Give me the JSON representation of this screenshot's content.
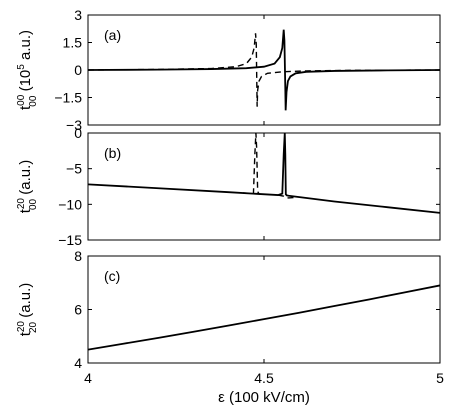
{
  "chart_data": {
    "type": "line",
    "shared_x": {
      "label": "ε (100 kV/cm)",
      "lim": [
        4,
        5
      ],
      "ticks": [
        "4",
        "4.5",
        "5"
      ]
    },
    "panels": [
      {
        "tag": "(a)",
        "ylabel": {
          "base": "t",
          "sup": "00",
          "sub": "00",
          "rest": " (10",
          "unitsup": "5",
          "unitrest": " a.u.)"
        },
        "ylim": [
          -3,
          3
        ],
        "yticks": [
          "3",
          "1.5",
          "0",
          "−1.5",
          "−3"
        ],
        "yticks_values": [
          3,
          1.5,
          0,
          -1.5,
          -3
        ],
        "series": [
          {
            "style": "solid",
            "x": [
              4.0,
              4.2,
              4.35,
              4.45,
              4.5,
              4.53,
              4.545,
              4.552,
              4.556,
              4.558,
              4.5605,
              4.5615,
              4.564,
              4.568,
              4.575,
              4.59,
              4.62,
              4.7,
              4.85,
              5.0
            ],
            "y": [
              0.0,
              0.02,
              0.05,
              0.1,
              0.18,
              0.35,
              0.7,
              1.2,
              2.2,
              1.6,
              -1.0,
              -2.2,
              -1.2,
              -0.6,
              -0.35,
              -0.18,
              -0.1,
              -0.05,
              -0.02,
              0.0
            ]
          },
          {
            "style": "dashed",
            "x": [
              4.0,
              4.2,
              4.35,
              4.42,
              4.45,
              4.465,
              4.472,
              4.476,
              4.478,
              4.4795,
              4.4805,
              4.482,
              4.486,
              4.493,
              4.51,
              4.55,
              4.62,
              4.75,
              5.0
            ],
            "y": [
              0.0,
              0.03,
              0.08,
              0.18,
              0.35,
              0.7,
              1.2,
              2.0,
              1.4,
              -0.6,
              -2.0,
              -1.1,
              -0.6,
              -0.35,
              -0.18,
              -0.1,
              -0.05,
              -0.02,
              0.0
            ]
          }
        ]
      },
      {
        "tag": "(b)",
        "ylabel": {
          "base": "t",
          "sup": "20",
          "sub": "00",
          "rest": " (a.u.)"
        },
        "ylim": [
          -15,
          0
        ],
        "yticks": [
          "0",
          "−5",
          "−10",
          "−15"
        ],
        "yticks_values": [
          0,
          -5,
          -10,
          -15
        ],
        "series": [
          {
            "style": "solid",
            "x": [
              4.0,
              4.2,
              4.4,
              4.54,
              4.552,
              4.556,
              4.559,
              4.5605,
              4.562,
              4.565,
              4.57,
              4.7,
              4.85,
              5.0
            ],
            "y": [
              -7.2,
              -7.75,
              -8.3,
              -8.7,
              -8.5,
              -3.0,
              0.0,
              -3.0,
              -8.6,
              -8.75,
              -8.8,
              -9.6,
              -10.4,
              -11.2
            ]
          },
          {
            "style": "dashed",
            "x": [
              4.44,
              4.47,
              4.474,
              4.477,
              4.479,
              4.482,
              4.486,
              4.49
            ],
            "y": [
              -8.4,
              -8.5,
              -3.0,
              0.0,
              -2.0,
              -8.2,
              -8.55,
              -8.6
            ]
          },
          {
            "style": "dashed",
            "x": [
              4.54,
              4.556,
              4.562,
              4.57,
              4.585,
              4.595
            ],
            "y": [
              -8.7,
              -8.85,
              -9.05,
              -9.1,
              -9.05,
              -9.05
            ]
          }
        ]
      },
      {
        "tag": "(c)",
        "ylabel": {
          "base": "t",
          "sup": "20",
          "sub": "20",
          "rest": " (a.u.)"
        },
        "ylim": [
          4,
          8
        ],
        "yticks": [
          "8",
          "6",
          "4"
        ],
        "yticks_values": [
          8,
          6,
          4
        ],
        "series": [
          {
            "style": "solid",
            "x": [
              4.0,
              4.1,
              4.2,
              4.3,
              4.4,
              4.5,
              4.6,
              4.7,
              4.8,
              4.9,
              5.0
            ],
            "y": [
              4.5,
              4.72,
              4.94,
              5.17,
              5.4,
              5.64,
              5.88,
              6.13,
              6.38,
              6.64,
              6.9
            ]
          }
        ]
      }
    ]
  }
}
